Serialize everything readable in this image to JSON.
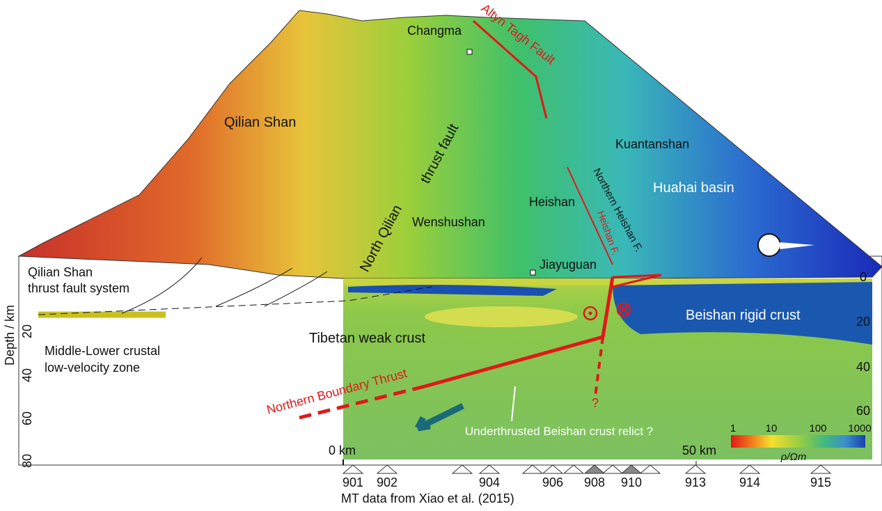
{
  "map_labels": {
    "altyn": "Altyn Tagh Fault",
    "changma": "Changma",
    "qilian": "Qilian Shan",
    "north_qilian": "North Qilian",
    "thrust_fault": "thrust fault",
    "kuantanshan": "Kuantanshan",
    "huahai": "Huahai basin",
    "heishan": "Heishan",
    "northern_heishan": "Northern Heishan F.",
    "heishan_f": "Heishan F.",
    "wenshushan": "Wenshushan",
    "jiayuguan": "Jiayuguan"
  },
  "section_labels": {
    "system_1": "Qilian Shan",
    "system_2": "thrust fault system",
    "depth": "Depth / km",
    "lvz_1": "Middle-Lower crustal",
    "lvz_2": "low-velocity zone",
    "tibetan": "Tibetan weak crust",
    "beishan": "Beishan rigid crust",
    "nbt": "Northern Boundary Thrust",
    "question": "?",
    "relict": "Underthrusted Beishan crust relict ?",
    "scale_0": "0 km",
    "scale_50": "50 km",
    "source": "MT data from Xiao et al. (2015)"
  },
  "left_depth_ticks": [
    "20",
    "40",
    "60",
    "80"
  ],
  "right_depth_ticks": [
    "0",
    "20",
    "40",
    "60"
  ],
  "stations": [
    "901",
    "902",
    "904",
    "906",
    "908",
    "910",
    "913",
    "914",
    "915"
  ],
  "colorbar": {
    "ticks": [
      "1",
      "10",
      "100",
      "1000"
    ],
    "unit": "ρ/Ωm"
  }
}
